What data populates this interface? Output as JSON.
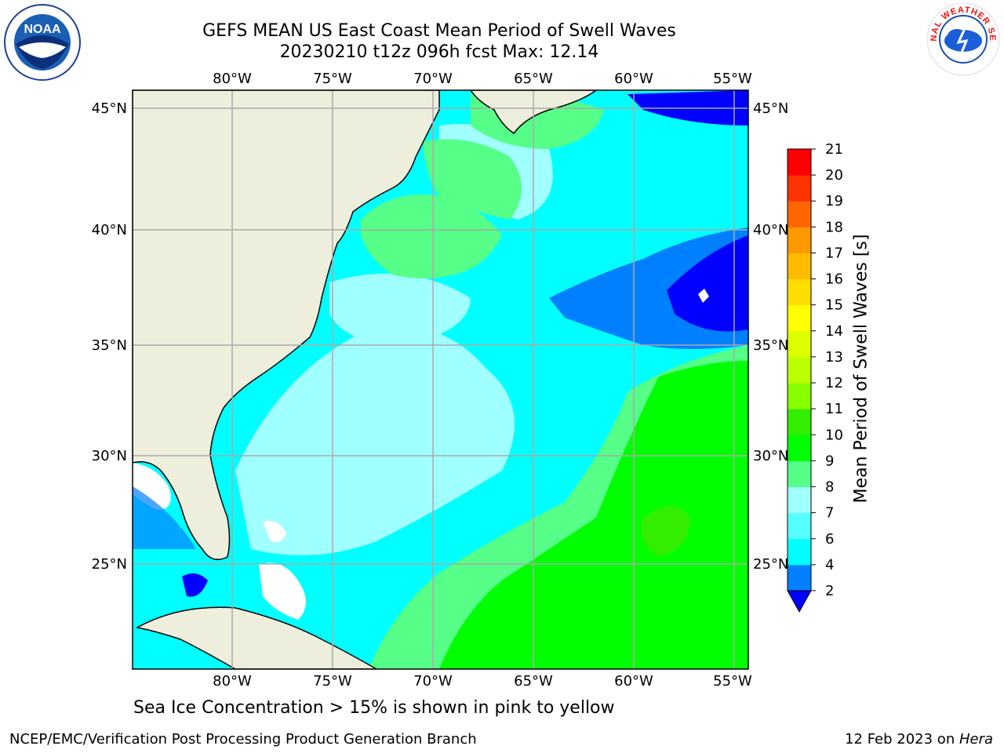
{
  "header": {
    "title_line1": "GEFS MEAN US East Coast Mean Period of Swell Waves",
    "title_line2": "20230210 t12z 096h fcst   Max: 12.14"
  },
  "map": {
    "lon_labels": [
      "80°W",
      "75°W",
      "70°W",
      "65°W",
      "60°W",
      "55°W"
    ],
    "lat_labels": [
      "45°N",
      "40°N",
      "35°N",
      "30°N",
      "25°N"
    ],
    "colors": {
      "land": "#eeeedd",
      "ocean_base": "#00ffff"
    }
  },
  "colorbar": {
    "label": "Mean Period of Swell Waves [s]",
    "ticks": [
      "2",
      "4",
      "6",
      "7",
      "8",
      "9",
      "10",
      "11",
      "12",
      "13",
      "14",
      "15",
      "16",
      "17",
      "18",
      "19",
      "20",
      "21"
    ],
    "colors": [
      "#0000ff",
      "#0080ff",
      "#00ffff",
      "#55ffff",
      "#a0ffff",
      "#55ff88",
      "#00ff00",
      "#33ee00",
      "#88ff00",
      "#bbff00",
      "#ddff00",
      "#ffff00",
      "#ffdd00",
      "#ffbb00",
      "#ff9900",
      "#ff6600",
      "#ff3300",
      "#ff0000"
    ]
  },
  "note": "Sea Ice Concentration > 15% is shown in pink to yellow",
  "footer": {
    "left": "NCEP/EMC/Verification Post Processing Product Generation Branch",
    "right_date": "12 Feb 2023 on ",
    "right_host": "Hera"
  },
  "logos": {
    "noaa_text": "NOAA",
    "nws_text": "NATIONAL WEATHER SERVICE"
  }
}
